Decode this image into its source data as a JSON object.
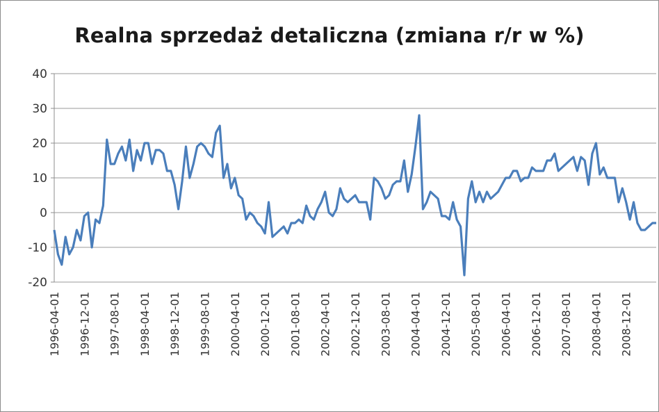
{
  "chart_data": {
    "type": "line",
    "title": "Realna sprzedaż detaliczna (zmiana r/r w %)",
    "xlabel": "",
    "ylabel": "",
    "ylim": [
      -20,
      40
    ],
    "yticks": [
      40,
      30,
      20,
      10,
      0,
      -10,
      -20
    ],
    "grid": true,
    "legend": "none",
    "line_color": "#4a7ebb",
    "x_tick_labels": [
      "1996-04-01",
      "1996-12-01",
      "1997-08-01",
      "1998-04-01",
      "1998-12-01",
      "1999-08-01",
      "2000-04-01",
      "2000-12-01",
      "2001-08-01",
      "2002-04-01",
      "2002-12-01",
      "2003-08-01",
      "2004-04-01",
      "2004-12-01",
      "2005-08-01",
      "2006-04-01",
      "2006-12-01",
      "2007-08-01",
      "2008-04-01",
      "2008-12-01"
    ],
    "start_month": "1996-04",
    "series": [
      {
        "values": [
          -5,
          -12,
          -15,
          -7,
          -12,
          -10,
          -5,
          -8,
          -1,
          0,
          -10,
          -2,
          -3,
          2,
          21,
          14,
          14,
          17,
          19,
          15,
          21,
          12,
          18,
          15,
          20,
          20,
          14,
          18,
          18,
          17,
          12,
          12,
          8,
          1,
          9,
          19,
          10,
          14,
          19,
          20,
          19,
          17,
          16,
          23,
          25,
          10,
          14,
          7,
          10,
          5,
          4,
          -2,
          0,
          -1,
          -3,
          -4,
          -6,
          3,
          -7,
          -6,
          -5,
          -4,
          -6,
          -3,
          -3,
          -2,
          -3,
          2,
          -1,
          -2,
          1,
          3,
          6,
          0,
          -1,
          1,
          7,
          4,
          3,
          4,
          5,
          3,
          3,
          3,
          -2,
          10,
          9,
          7,
          4,
          5,
          8,
          9,
          9,
          15,
          6,
          11,
          19,
          28,
          1,
          3,
          6,
          5,
          4,
          -1,
          -1,
          -2,
          3,
          -2,
          -4,
          -18,
          4,
          9,
          3,
          6,
          3,
          6,
          4,
          5,
          6,
          8,
          10,
          10,
          12,
          12,
          9,
          10,
          10,
          13,
          12,
          12,
          12,
          15,
          15,
          17,
          12,
          13,
          14,
          15,
          16,
          12,
          16,
          15,
          8,
          17,
          20,
          11,
          13,
          10,
          10,
          10,
          3,
          7,
          3,
          -2,
          3,
          -3,
          -5,
          -5,
          -4,
          -3,
          -3
        ]
      }
    ]
  }
}
